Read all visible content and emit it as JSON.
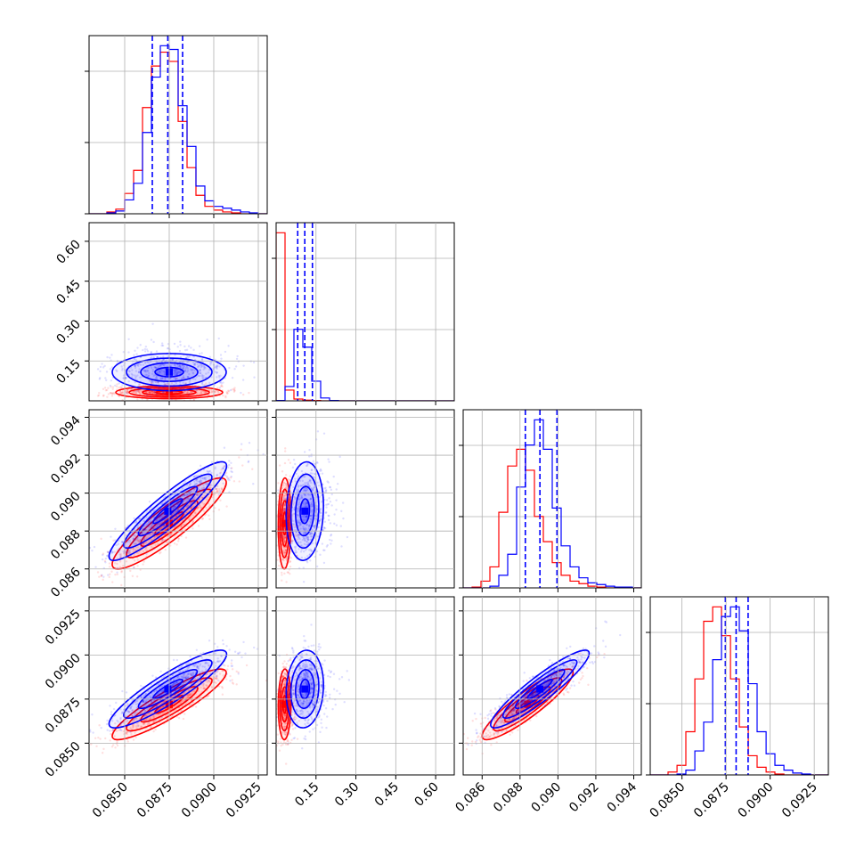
{
  "chart_data": {
    "type": "scatter",
    "title": "",
    "colors": {
      "series_a": "#0000ff",
      "series_b": "#ff0000"
    },
    "series": [
      {
        "color": "#0000ff",
        "medians": [
          0.08742,
          0.1078,
          0.08905,
          0.08807
        ],
        "q16": [
          0.08655,
          0.0812,
          0.08828,
          0.08746
        ],
        "q84": [
          0.08825,
          0.1365,
          0.08995,
          0.08875
        ]
      },
      {
        "color": "#ff0000",
        "medians": [
          0.0875,
          0.032,
          0.0884,
          0.0872
        ]
      }
    ],
    "grid": true,
    "axes": {
      "p0": {
        "ticks": [
          0.085,
          0.0875,
          0.09,
          0.0925
        ],
        "tick_labels": [
          "0.0850",
          "0.0875",
          "0.0900",
          "0.0925"
        ],
        "range": [
          0.083,
          0.093
        ]
      },
      "p1": {
        "ticks": [
          0.15,
          0.3,
          0.45,
          0.6
        ],
        "tick_labels": [
          "0.15",
          "0.30",
          "0.45",
          "0.60"
        ],
        "range": [
          0.0,
          0.67
        ]
      },
      "p2": {
        "ticks": [
          0.086,
          0.088,
          0.09,
          0.092,
          0.094
        ],
        "tick_labels": [
          "0.086",
          "0.088",
          "0.090",
          "0.092",
          "0.094"
        ],
        "range": [
          0.085,
          0.0944
        ]
      },
      "p3": {
        "ticks": [
          0.085,
          0.0875,
          0.09,
          0.0925
        ],
        "tick_labels": [
          "0.0850",
          "0.0875",
          "0.0900",
          "0.0925"
        ],
        "range": [
          0.0832,
          0.0933
        ]
      }
    },
    "histograms": [
      {
        "param": "p0",
        "bins": [
          0.083,
          0.0835,
          0.084,
          0.0845,
          0.085,
          0.0855,
          0.086,
          0.0865,
          0.087,
          0.0875,
          0.088,
          0.0885,
          0.089,
          0.0895,
          0.09,
          0.0905,
          0.091,
          0.0915,
          0.092,
          0.0925,
          0.093
        ],
        "blue": [
          0,
          0,
          1,
          3,
          15,
          33,
          88,
          148,
          182,
          178,
          117,
          73,
          30,
          14,
          8,
          6,
          4,
          2,
          1,
          0
        ],
        "red": [
          0,
          0,
          2,
          5,
          22,
          47,
          115,
          160,
          175,
          165,
          100,
          50,
          20,
          8,
          4,
          2,
          1,
          0,
          0,
          0
        ]
      },
      {
        "param": "p1",
        "bins": [
          0.0,
          0.0335,
          0.067,
          0.1005,
          0.134,
          0.1675,
          0.201,
          0.2345,
          0.268,
          0.3015,
          0.335,
          0.3685,
          0.402,
          0.4355,
          0.469,
          0.5025,
          0.536,
          0.5695,
          0.603,
          0.6365,
          0.67
        ],
        "blue": [
          1,
          40,
          200,
          150,
          55,
          8,
          1,
          0,
          0,
          0,
          0,
          0,
          0,
          0,
          0,
          0,
          0,
          0,
          0,
          0
        ],
        "red": [
          470,
          30,
          5,
          2,
          1,
          0,
          0,
          0,
          0,
          0,
          0,
          0,
          0,
          0,
          0,
          0,
          0,
          0,
          0,
          0
        ]
      },
      {
        "param": "p2",
        "bins": [
          0.085,
          0.08547,
          0.08594,
          0.08641,
          0.08688,
          0.08735,
          0.08782,
          0.08829,
          0.08876,
          0.08923,
          0.0897,
          0.09017,
          0.09064,
          0.09111,
          0.09158,
          0.09205,
          0.09252,
          0.09299,
          0.09346,
          0.09393,
          0.0944
        ],
        "blue": [
          0,
          0,
          0,
          2,
          15,
          40,
          120,
          170,
          200,
          165,
          95,
          50,
          25,
          12,
          6,
          4,
          2,
          1,
          1,
          0
        ],
        "red": [
          0,
          1,
          8,
          25,
          90,
          145,
          165,
          140,
          85,
          55,
          30,
          15,
          8,
          5,
          2,
          1,
          0,
          0,
          0,
          0
        ]
      },
      {
        "param": "p3",
        "bins": [
          0.0832,
          0.08371,
          0.08421,
          0.08472,
          0.08522,
          0.08573,
          0.08623,
          0.08674,
          0.08724,
          0.08775,
          0.08825,
          0.08876,
          0.08926,
          0.08977,
          0.09027,
          0.09078,
          0.09128,
          0.09179,
          0.09229,
          0.0928,
          0.0933
        ],
        "blue": [
          0,
          0,
          0,
          1,
          5,
          25,
          55,
          120,
          165,
          175,
          150,
          95,
          45,
          22,
          10,
          5,
          2,
          1,
          0,
          0
        ],
        "red": [
          0,
          0,
          3,
          10,
          45,
          100,
          160,
          175,
          145,
          100,
          50,
          20,
          8,
          3,
          1,
          0,
          0,
          0,
          0,
          0
        ]
      }
    ],
    "correlations": [
      {
        "x": "p0",
        "y": "p1",
        "blue": {
          "center": [
            0.0875,
            0.108
          ],
          "sd": [
            0.0016,
            0.035
          ],
          "rho": 0.0
        },
        "red": {
          "center": [
            0.0875,
            0.032
          ],
          "sd": [
            0.0015,
            0.012
          ],
          "rho": 0.0
        }
      },
      {
        "x": "p0",
        "y": "p2",
        "blue": {
          "center": [
            0.08742,
            0.08905
          ],
          "sd": [
            0.00165,
            0.0013
          ],
          "rho": 0.92
        },
        "red": {
          "center": [
            0.0875,
            0.0884
          ],
          "sd": [
            0.0016,
            0.0012
          ],
          "rho": 0.9
        }
      },
      {
        "x": "p1",
        "y": "p2",
        "blue": {
          "center": [
            0.108,
            0.08905
          ],
          "sd": [
            0.035,
            0.0013
          ],
          "rho": 0.1
        },
        "red": {
          "center": [
            0.032,
            0.0884
          ],
          "sd": [
            0.012,
            0.0012
          ],
          "rho": 0.05
        }
      },
      {
        "x": "p0",
        "y": "p3",
        "blue": {
          "center": [
            0.08742,
            0.08807
          ],
          "sd": [
            0.00165,
            0.0011
          ],
          "rho": 0.9
        },
        "red": {
          "center": [
            0.0875,
            0.0872
          ],
          "sd": [
            0.0016,
            0.001
          ],
          "rho": 0.9
        }
      },
      {
        "x": "p1",
        "y": "p3",
        "blue": {
          "center": [
            0.108,
            0.08807
          ],
          "sd": [
            0.035,
            0.0011
          ],
          "rho": 0.1
        },
        "red": {
          "center": [
            0.032,
            0.0872
          ],
          "sd": [
            0.012,
            0.001
          ],
          "rho": 0.05
        }
      },
      {
        "x": "p2",
        "y": "p3",
        "blue": {
          "center": [
            0.08905,
            0.08807
          ],
          "sd": [
            0.0013,
            0.0011
          ],
          "rho": 0.92
        },
        "red": {
          "center": [
            0.0884,
            0.0872
          ],
          "sd": [
            0.0012,
            0.001
          ],
          "rho": 0.9
        }
      }
    ]
  }
}
